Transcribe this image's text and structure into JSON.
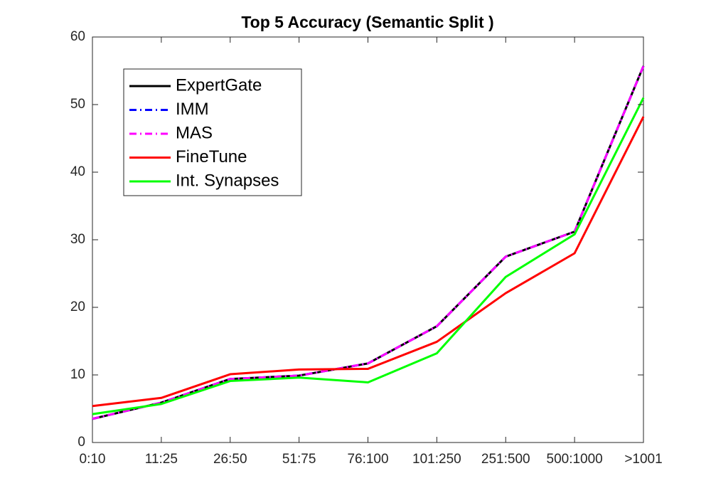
{
  "chart_data": {
    "type": "line",
    "title": "Top 5 Accuracy (Semantic Split )",
    "categories": [
      "0:10",
      "11:25",
      "26:50",
      "51:75",
      "76:100",
      "101:250",
      "251:500",
      "500:1000",
      ">1001"
    ],
    "series": [
      {
        "name": "ExpertGate",
        "color": "#000000",
        "style": "solid",
        "values": [
          3.5,
          5.9,
          9.4,
          9.9,
          11.7,
          17.2,
          27.5,
          31.2,
          55.7
        ]
      },
      {
        "name": "IMM",
        "color": "#0000ff",
        "style": "dashdot",
        "values": [
          3.5,
          5.9,
          9.4,
          9.9,
          11.7,
          17.2,
          27.5,
          31.2,
          55.7
        ]
      },
      {
        "name": "MAS",
        "color": "#ff00ff",
        "style": "dashdot",
        "values": [
          3.5,
          5.9,
          9.4,
          9.9,
          11.7,
          17.2,
          27.5,
          31.2,
          55.7
        ]
      },
      {
        "name": "FineTune",
        "color": "#ff0000",
        "style": "solid",
        "values": [
          5.4,
          6.6,
          10.1,
          10.8,
          10.9,
          14.9,
          22.1,
          28.0,
          48.2
        ]
      },
      {
        "name": "Int. Synapses",
        "color": "#00ff00",
        "style": "solid",
        "values": [
          4.2,
          5.7,
          9.1,
          9.6,
          8.9,
          13.2,
          24.5,
          30.8,
          51.0
        ]
      }
    ],
    "ylim": [
      0,
      60
    ],
    "yticks": [
      0,
      10,
      20,
      30,
      40,
      50,
      60
    ],
    "grid": false,
    "legend": "top-left"
  }
}
